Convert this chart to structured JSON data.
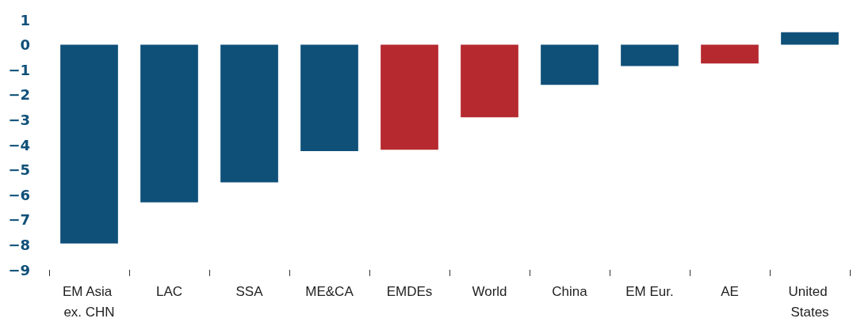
{
  "chart_data": {
    "type": "bar",
    "categories": [
      "EM Asia ex. CHN",
      "LAC",
      "SSA",
      "ME&CA",
      "EMDEs",
      "World",
      "China",
      "EM Eur.",
      "AE",
      "United States"
    ],
    "values": [
      -7.95,
      -6.3,
      -5.5,
      -4.25,
      -4.2,
      -2.9,
      -1.6,
      -0.85,
      -0.75,
      0.5
    ],
    "colors": [
      "#0f5079",
      "#0f5079",
      "#0f5079",
      "#0f5079",
      "#b5292f",
      "#b5292f",
      "#0f5079",
      "#0f5079",
      "#b5292f",
      "#0f5079"
    ],
    "ylim": [
      -9,
      1
    ],
    "yticks": [
      -9,
      -8,
      -7,
      -6,
      -5,
      -4,
      -3,
      -2,
      -1,
      0,
      1
    ],
    "grid": false
  }
}
